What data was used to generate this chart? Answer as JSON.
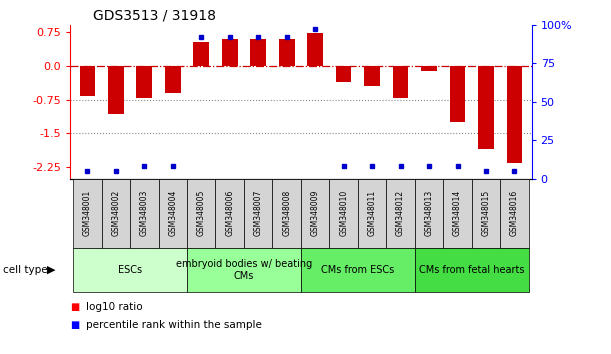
{
  "title": "GDS3513 / 31918",
  "samples": [
    "GSM348001",
    "GSM348002",
    "GSM348003",
    "GSM348004",
    "GSM348005",
    "GSM348006",
    "GSM348007",
    "GSM348008",
    "GSM348009",
    "GSM348010",
    "GSM348011",
    "GSM348012",
    "GSM348013",
    "GSM348014",
    "GSM348015",
    "GSM348016"
  ],
  "log10_ratio": [
    -0.68,
    -1.08,
    -0.72,
    -0.6,
    0.52,
    0.58,
    0.58,
    0.58,
    0.72,
    -0.36,
    -0.45,
    -0.72,
    -0.12,
    -1.25,
    -1.85,
    -2.15
  ],
  "percentile_rank": [
    5,
    5,
    8,
    8,
    92,
    92,
    92,
    92,
    97,
    8,
    8,
    8,
    8,
    8,
    5,
    5
  ],
  "cell_type_groups": [
    {
      "label": "ESCs",
      "start": 0,
      "end": 3,
      "color": "#ccffcc"
    },
    {
      "label": "embryoid bodies w/ beating\nCMs",
      "start": 4,
      "end": 7,
      "color": "#99ff99"
    },
    {
      "label": "CMs from ESCs",
      "start": 8,
      "end": 11,
      "color": "#66ee66"
    },
    {
      "label": "CMs from fetal hearts",
      "start": 12,
      "end": 15,
      "color": "#44dd44"
    }
  ],
  "ylim_left": [
    -2.5,
    0.9
  ],
  "ylim_right": [
    0,
    100
  ],
  "left_ticks": [
    0.75,
    0.0,
    -0.75,
    -1.5,
    -2.25
  ],
  "right_ticks": [
    100,
    75,
    50,
    25,
    0
  ],
  "bar_color": "#cc0000",
  "dot_color": "#0000cc",
  "zero_line_color": "#cc0000",
  "dotted_line_color": "#888888",
  "sample_box_color": "#d4d4d4",
  "title_fontsize": 10,
  "axis_fontsize": 8,
  "sample_fontsize": 5.5,
  "group_fontsize": 7,
  "legend_fontsize": 8
}
